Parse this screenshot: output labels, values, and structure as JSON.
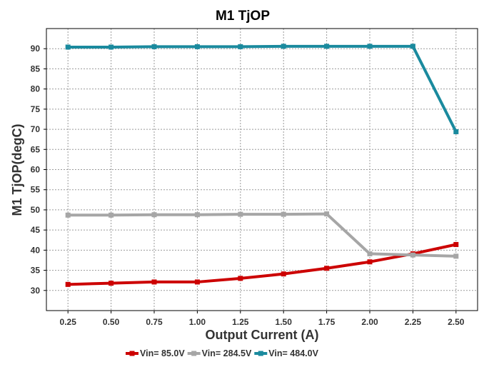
{
  "chart_data": {
    "type": "line",
    "title": "M1 TjOP",
    "xlabel": "Output Current (A)",
    "ylabel": "M1 TjOP(degC)",
    "x": [
      0.25,
      0.5,
      0.75,
      1.0,
      1.25,
      1.5,
      1.75,
      2.0,
      2.25,
      2.5
    ],
    "x_tick_labels": [
      "0.25",
      "0.50",
      "0.75",
      "1.00",
      "1.25",
      "1.50",
      "1.75",
      "2.00",
      "2.25",
      "2.50"
    ],
    "xlim": [
      0.125,
      2.625
    ],
    "ylim": [
      25,
      95
    ],
    "y_ticks": [
      30,
      35,
      40,
      45,
      50,
      55,
      60,
      65,
      70,
      75,
      80,
      85,
      90
    ],
    "grid": true,
    "legend_position": "bottom",
    "series": [
      {
        "name": "Vin= 85.0V",
        "color": "#cc0000",
        "values": [
          31.5,
          31.8,
          32.1,
          32.1,
          33.0,
          34.1,
          35.5,
          37.1,
          39.1,
          41.4
        ]
      },
      {
        "name": "Vin= 284.5V",
        "color": "#a6a6a6",
        "values": [
          48.7,
          48.7,
          48.8,
          48.8,
          48.9,
          48.9,
          49.0,
          39.1,
          38.8,
          38.5
        ]
      },
      {
        "name": "Vin= 484.0V",
        "color": "#1a8a9e",
        "values": [
          90.4,
          90.4,
          90.5,
          90.5,
          90.5,
          90.6,
          90.6,
          90.6,
          90.6,
          69.4
        ]
      }
    ]
  }
}
